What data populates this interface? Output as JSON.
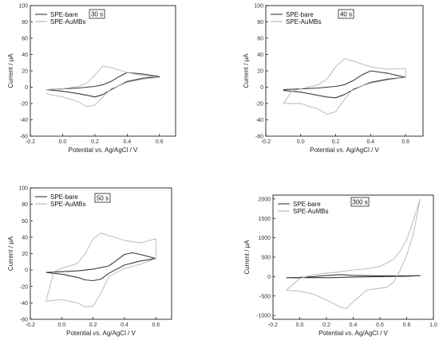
{
  "colors": {
    "bare": "#3a3a3a",
    "aumbs": "#b4b4b4",
    "axis": "#000000"
  },
  "chart_data": [
    {
      "type": "line",
      "annotation": "30 s",
      "xlabel": [
        "Potential ",
        "vs.",
        " Ag/AgCl / V"
      ],
      "ylabel": "Current / μA",
      "xlim": [
        -0.2,
        0.7
      ],
      "ylim": [
        -60,
        100
      ],
      "xticks": [
        -0.2,
        0.0,
        0.2,
        0.4,
        0.6
      ],
      "xtick_labels": [
        "-0.2",
        "0.0",
        "0.2",
        "0.4",
        "0.6"
      ],
      "yticks": [
        -60,
        -40,
        -20,
        0,
        20,
        40,
        60,
        80,
        100
      ],
      "ytick_labels": [
        "-60",
        "-40",
        "-20",
        "0",
        "20",
        "40",
        "60",
        "80",
        "100"
      ],
      "grid": false,
      "legend": "top-left",
      "series": [
        {
          "name": "SPE-bare",
          "x": [
            -0.1,
            0.0,
            0.1,
            0.2,
            0.25,
            0.3,
            0.35,
            0.4,
            0.5,
            0.6,
            0.5,
            0.4,
            0.3,
            0.25,
            0.2,
            0.18,
            0.1,
            0.0,
            -0.1
          ],
          "y": [
            -3,
            -2,
            -1,
            1,
            3,
            7,
            13,
            18,
            16,
            13,
            11,
            7,
            -3,
            -9,
            -12,
            -11,
            -8,
            -5,
            -3
          ]
        },
        {
          "name": "SPE-AuMBs",
          "x": [
            -0.1,
            0.0,
            0.1,
            0.15,
            0.2,
            0.25,
            0.3,
            0.4,
            0.5,
            0.6,
            0.5,
            0.4,
            0.3,
            0.25,
            0.2,
            0.15,
            0.1,
            0.0,
            -0.1
          ],
          "y": [
            -3,
            -2,
            1,
            5,
            15,
            26,
            24,
            18,
            14,
            12,
            10,
            6,
            -2,
            -12,
            -22,
            -24,
            -18,
            -12,
            -8
          ]
        }
      ]
    },
    {
      "type": "line",
      "annotation": "40 s",
      "xlabel": [
        "Potential ",
        "vs.",
        " Ag/AgCl / V"
      ],
      "ylabel": "Current / μA",
      "xlim": [
        -0.2,
        0.7
      ],
      "ylim": [
        -60,
        100
      ],
      "xticks": [
        -0.2,
        0.0,
        0.2,
        0.4,
        0.6
      ],
      "xtick_labels": [
        "-0.2",
        "0.0",
        "0.2",
        "0.4",
        "0.6"
      ],
      "yticks": [
        -60,
        -40,
        -20,
        0,
        20,
        40,
        60,
        80,
        100
      ],
      "ytick_labels": [
        "-60",
        "-40",
        "-20",
        "0",
        "20",
        "40",
        "60",
        "80",
        "100"
      ],
      "grid": false,
      "legend": "top-left",
      "series": [
        {
          "name": "SPE-bare",
          "x": [
            -0.1,
            0.0,
            0.1,
            0.2,
            0.25,
            0.3,
            0.35,
            0.4,
            0.5,
            0.6,
            0.5,
            0.4,
            0.3,
            0.25,
            0.2,
            0.15,
            0.1,
            0.0,
            -0.1
          ],
          "y": [
            -3,
            -2,
            -1,
            1,
            3,
            8,
            15,
            20,
            17,
            12,
            10,
            6,
            -3,
            -9,
            -13,
            -12,
            -10,
            -6,
            -4
          ]
        },
        {
          "name": "SPE-AuMBs",
          "x": [
            -0.1,
            -0.05,
            0.0,
            0.1,
            0.15,
            0.2,
            0.25,
            0.3,
            0.4,
            0.5,
            0.6,
            0.6,
            0.5,
            0.4,
            0.3,
            0.25,
            0.2,
            0.15,
            0.1,
            0.0,
            -0.1,
            -0.1
          ],
          "y": [
            -20,
            -5,
            -2,
            3,
            10,
            25,
            35,
            32,
            25,
            22,
            23,
            12,
            9,
            5,
            -2,
            -15,
            -30,
            -33,
            -27,
            -20,
            -20,
            -20
          ]
        }
      ]
    },
    {
      "type": "line",
      "annotation": "50 s",
      "xlabel": [
        "Potential ",
        "vs.",
        " Ag/AgCl / V"
      ],
      "ylabel": "Current / μA",
      "xlim": [
        -0.2,
        0.7
      ],
      "ylim": [
        -60,
        100
      ],
      "xticks": [
        -0.2,
        0.0,
        0.2,
        0.4,
        0.6
      ],
      "xtick_labels": [
        "-0.2",
        "0.0",
        "0.2",
        "0.4",
        "0.6"
      ],
      "yticks": [
        -60,
        -40,
        -20,
        0,
        20,
        40,
        60,
        80,
        100
      ],
      "ytick_labels": [
        "-60",
        "-40",
        "-20",
        "0",
        "20",
        "40",
        "60",
        "80",
        "100"
      ],
      "grid": false,
      "legend": "top-left",
      "series": [
        {
          "name": "SPE-bare",
          "x": [
            -0.1,
            0.0,
            0.1,
            0.2,
            0.3,
            0.35,
            0.4,
            0.45,
            0.5,
            0.6,
            0.5,
            0.4,
            0.3,
            0.25,
            0.2,
            0.15,
            0.1,
            0.0,
            -0.1
          ],
          "y": [
            -3,
            -2,
            -1,
            1,
            5,
            12,
            19,
            21,
            19,
            14,
            11,
            6,
            -4,
            -11,
            -13,
            -12,
            -9,
            -5,
            -3
          ]
        },
        {
          "name": "SPE-AuMBs",
          "x": [
            -0.1,
            -0.05,
            0.0,
            0.1,
            0.15,
            0.2,
            0.25,
            0.3,
            0.4,
            0.5,
            0.6,
            0.6,
            0.5,
            0.4,
            0.3,
            0.25,
            0.2,
            0.15,
            0.1,
            0.0,
            -0.1,
            -0.1
          ],
          "y": [
            -38,
            -2,
            2,
            8,
            20,
            38,
            45,
            42,
            36,
            33,
            38,
            14,
            7,
            2,
            -8,
            -28,
            -44,
            -45,
            -40,
            -36,
            -38,
            -38
          ]
        }
      ]
    },
    {
      "type": "line",
      "annotation": "300 s",
      "xlabel": [
        "Potential ",
        "vs.",
        " Ag/AgCl / V"
      ],
      "ylabel": "Current / μA",
      "xlim": [
        -0.2,
        1.0
      ],
      "ylim": [
        -1100,
        2100
      ],
      "xticks": [
        -0.2,
        0.0,
        0.2,
        0.4,
        0.6,
        0.8,
        1.0
      ],
      "xtick_labels": [
        "-0.2",
        "0.0",
        "0.2",
        "0.4",
        "0.6",
        "0.8",
        "1.0"
      ],
      "yticks": [
        -1000,
        -500,
        0,
        500,
        1000,
        1500,
        2000
      ],
      "ytick_labels": [
        "-1000",
        "-500",
        "0",
        "500",
        "1000",
        "1500",
        "2000"
      ],
      "grid": false,
      "legend": "top-left",
      "series": [
        {
          "name": "SPE-bare",
          "x": [
            -0.1,
            0.0,
            0.1,
            0.2,
            0.3,
            0.4,
            0.6,
            0.8,
            0.9,
            0.8,
            0.6,
            0.4,
            0.3,
            0.2,
            0.1,
            0.0,
            -0.1
          ],
          "y": [
            -30,
            -20,
            0,
            30,
            50,
            30,
            20,
            20,
            25,
            10,
            0,
            -10,
            -20,
            -30,
            -25,
            -30,
            -30
          ]
        },
        {
          "name": "SPE-AuMBs",
          "x": [
            -0.1,
            0.0,
            0.1,
            0.2,
            0.3,
            0.4,
            0.5,
            0.6,
            0.7,
            0.75,
            0.8,
            0.85,
            0.9,
            0.85,
            0.8,
            0.75,
            0.7,
            0.65,
            0.6,
            0.5,
            0.4,
            0.35,
            0.3,
            0.2,
            0.1,
            0.0,
            -0.1,
            -0.1
          ],
          "y": [
            -350,
            -50,
            50,
            90,
            120,
            170,
            200,
            260,
            440,
            650,
            950,
            1450,
            2000,
            1100,
            550,
            150,
            -150,
            -280,
            -300,
            -350,
            -650,
            -820,
            -780,
            -600,
            -450,
            -380,
            -350,
            -350
          ]
        }
      ]
    }
  ]
}
